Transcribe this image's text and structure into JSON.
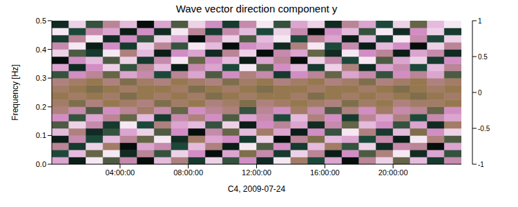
{
  "chart_data": {
    "type": "heatmap",
    "title": "Wave vector direction component y",
    "x_label": "C4, 2009-07-24",
    "y_label": "Frequency [Hz]",
    "xlim": [
      0,
      24
    ],
    "xticks": [
      {
        "value": 4,
        "label": "04:00:00"
      },
      {
        "value": 8,
        "label": "08:00:00"
      },
      {
        "value": 12,
        "label": "12:00:00"
      },
      {
        "value": 16,
        "label": "16:00:00"
      },
      {
        "value": 20,
        "label": "20:00:00"
      }
    ],
    "ylim": [
      0,
      0.5
    ],
    "yticks": [
      {
        "value": 0,
        "label": "0.0"
      },
      {
        "value": 0.1,
        "label": "0.1"
      },
      {
        "value": 0.2,
        "label": "0.2"
      },
      {
        "value": 0.3,
        "label": "0.3"
      },
      {
        "value": 0.4,
        "label": "0.4"
      },
      {
        "value": 0.5,
        "label": "0.5"
      }
    ],
    "x_edges": [
      0,
      1,
      2,
      3,
      4,
      5,
      6,
      7,
      8,
      9,
      10,
      11,
      12,
      13,
      14,
      15,
      16,
      17,
      18,
      19,
      20,
      21,
      22,
      23,
      24
    ],
    "y_edges": [
      0,
      0.025,
      0.05,
      0.075,
      0.1,
      0.125,
      0.15,
      0.175,
      0.2,
      0.225,
      0.25,
      0.275,
      0.3,
      0.325,
      0.35,
      0.375,
      0.4,
      0.425,
      0.45,
      0.475,
      0.5
    ],
    "cells": [
      [
        0.6,
        -0.8,
        0.9,
        -0.3,
        0.4,
        -0.9,
        0.7,
        0.2,
        -0.6,
        0.8,
        -0.4,
        0.5,
        -0.7,
        0.9,
        0.1,
        -0.5,
        0.6,
        -0.9,
        0.3,
        0.8,
        -0.2,
        0.7,
        -0.6,
        0.4
      ],
      [
        -0.5,
        0.7,
        -0.2,
        0.9,
        -0.7,
        0.3,
        -0.4,
        0.8,
        0.5,
        -0.9,
        0.6,
        -0.1,
        0.4,
        -0.6,
        0.8,
        0.3,
        -0.8,
        0.5,
        -0.3,
        0.2,
        0.9,
        -0.7,
        0.6,
        -0.4
      ],
      [
        0.3,
        -0.6,
        0.8,
        0.1,
        -0.9,
        0.6,
        0.4,
        -0.5,
        0.7,
        0.2,
        -0.8,
        0.9,
        -0.3,
        0.5,
        -0.6,
        0.7,
        0.1,
        -0.4,
        0.8,
        -0.7,
        0.4,
        0.3,
        -0.9,
        0.6
      ],
      [
        -0.8,
        0.4,
        -0.5,
        0.7,
        0.3,
        -0.2,
        0.9,
        -0.7,
        0.1,
        0.6,
        0.5,
        -0.6,
        0.8,
        -0.9,
        0.3,
        -0.1,
        0.7,
        0.6,
        -0.5,
        0.4,
        -0.8,
        0.9,
        0.2,
        -0.3
      ],
      [
        0.7,
        0.2,
        -0.7,
        -0.4,
        0.6,
        0.8,
        -0.3,
        0.5,
        -0.9,
        0.4,
        -0.2,
        0.7,
        0.1,
        0.6,
        -0.8,
        0.5,
        -0.4,
        0.9,
        0.2,
        -0.6,
        0.7,
        -0.1,
        0.5,
        0.8
      ],
      [
        -0.3,
        0.8,
        0.4,
        -0.6,
        0.9,
        -0.5,
        0.2,
        0.6,
        0.7,
        -0.4,
        0.8,
        -0.8,
        0.5,
        0.3,
        0.6,
        -0.7,
        0.4,
        -0.2,
        0.7,
        0.5,
        -0.4,
        0.6,
        -0.7,
        0.1
      ],
      [
        0.5,
        -0.4,
        0.6,
        0.3,
        -0.2,
        0.7,
        -0.6,
        0.4,
        0.2,
        0.5,
        -0.3,
        0.6,
        0.4,
        -0.5,
        0.7,
        0.2,
        0.5,
        -0.6,
        0.3,
        0.6,
        0.2,
        -0.5,
        0.4,
        0.6
      ],
      [
        0.2,
        0.4,
        -0.3,
        0.5,
        0.3,
        0.1,
        0.4,
        -0.2,
        0.5,
        0.3,
        0.2,
        -0.4,
        0.3,
        0.5,
        0.1,
        0.4,
        -0.3,
        0.2,
        0.5,
        0.1,
        0.4,
        0.3,
        -0.2,
        0.5
      ],
      [
        0.1,
        -0.1,
        0.2,
        0.0,
        0.1,
        0.2,
        -0.1,
        0.1,
        0.0,
        0.2,
        0.1,
        -0.1,
        0.2,
        0.1,
        0.0,
        0.1,
        0.2,
        -0.1,
        0.1,
        0.0,
        0.2,
        0.1,
        0.1,
        0.0
      ],
      [
        0.0,
        0.1,
        0.0,
        0.1,
        -0.1,
        0.0,
        0.1,
        0.0,
        0.1,
        -0.1,
        0.0,
        0.1,
        0.0,
        0.0,
        0.1,
        -0.1,
        0.0,
        0.1,
        0.0,
        0.1,
        0.0,
        -0.1,
        0.0,
        0.1
      ],
      [
        0.1,
        0.0,
        -0.1,
        0.0,
        0.1,
        0.0,
        0.0,
        0.1,
        -0.1,
        0.0,
        0.1,
        0.0,
        -0.1,
        0.0,
        0.0,
        0.1,
        0.0,
        0.0,
        0.1,
        0.0,
        -0.1,
        0.0,
        0.1,
        0.0
      ],
      [
        0.2,
        0.1,
        0.0,
        0.2,
        -0.1,
        0.1,
        0.2,
        0.0,
        0.1,
        0.2,
        -0.1,
        0.1,
        0.0,
        0.2,
        0.1,
        0.0,
        0.2,
        0.1,
        -0.1,
        0.2,
        0.1,
        0.0,
        0.2,
        0.1
      ],
      [
        -0.4,
        0.5,
        0.3,
        -0.2,
        0.6,
        0.4,
        -0.5,
        0.3,
        0.6,
        -0.3,
        0.5,
        0.2,
        0.4,
        -0.6,
        0.5,
        0.3,
        -0.2,
        0.6,
        0.4,
        -0.4,
        0.5,
        0.3,
        0.6,
        -0.3
      ],
      [
        0.6,
        -0.7,
        0.5,
        0.8,
        -0.4,
        0.3,
        0.7,
        -0.8,
        0.4,
        0.6,
        -0.5,
        0.9,
        -0.3,
        0.5,
        0.7,
        -0.6,
        0.8,
        0.2,
        -0.7,
        0.6,
        0.4,
        -0.5,
        0.7,
        0.3
      ],
      [
        -0.9,
        0.5,
        0.7,
        -0.3,
        0.8,
        -0.6,
        0.4,
        0.9,
        -0.2,
        0.5,
        0.7,
        -0.8,
        0.6,
        0.3,
        -0.9,
        0.8,
        0.4,
        -0.5,
        0.9,
        -0.3,
        0.6,
        0.8,
        -0.6,
        0.5
      ],
      [
        0.8,
        -0.3,
        -0.6,
        0.9,
        0.2,
        0.7,
        -0.8,
        0.5,
        0.6,
        -0.7,
        0.3,
        0.8,
        -0.9,
        0.4,
        0.6,
        -0.2,
        -0.7,
        0.9,
        0.5,
        0.3,
        -0.8,
        0.6,
        0.4,
        -0.7
      ],
      [
        0.4,
        0.9,
        -0.8,
        0.5,
        -0.6,
        0.8,
        0.3,
        -0.4,
        0.9,
        0.7,
        -0.9,
        0.5,
        0.6,
        -0.7,
        0.2,
        0.9,
        -0.5,
        0.4,
        -0.8,
        0.7,
        0.5,
        -0.9,
        0.8,
        0.3
      ],
      [
        -0.6,
        0.3,
        0.9,
        -0.7,
        0.5,
        -0.4,
        0.8,
        0.6,
        -0.9,
        0.4,
        0.8,
        -0.3,
        0.7,
        0.9,
        -0.5,
        0.3,
        0.6,
        -0.8,
        0.7,
        -0.6,
        0.9,
        0.4,
        -0.5,
        0.8
      ],
      [
        0.9,
        -0.5,
        0.4,
        0.6,
        -0.8,
        0.5,
        -0.7,
        0.9,
        0.3,
        -0.6,
        0.4,
        0.7,
        -0.5,
        0.8,
        0.4,
        -0.9,
        0.5,
        0.7,
        -0.4,
        0.9,
        -0.7,
        0.5,
        0.8,
        -0.6
      ],
      [
        -0.7,
        0.8,
        -0.4,
        0.3,
        0.7,
        -0.9,
        0.6,
        -0.3,
        0.8,
        0.5,
        -0.6,
        0.4,
        0.9,
        -0.4,
        0.6,
        0.8,
        -0.7,
        0.3,
        0.6,
        -0.5,
        0.8,
        -0.2,
        0.7,
        0.9
      ]
    ],
    "colorbar": {
      "range": [
        -1,
        1
      ],
      "ticks": [
        -1,
        -0.5,
        0,
        0.5,
        1
      ]
    }
  }
}
